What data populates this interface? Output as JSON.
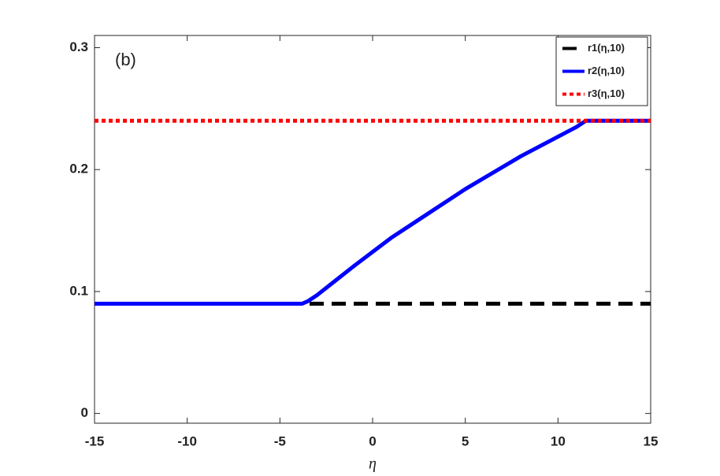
{
  "chart_data": {
    "type": "line",
    "annotation": "(b)",
    "x_label": "η",
    "xlim": [
      -15,
      15
    ],
    "xticks": [
      -15,
      -10,
      -5,
      0,
      5,
      10,
      15
    ],
    "ylim": [
      -0.008,
      0.31
    ],
    "yticks": [
      0,
      0.1,
      0.2,
      0.3
    ],
    "legend": "upper right",
    "series": [
      {
        "name": "r1(η,10)",
        "color": "#000000",
        "style": "dashed",
        "x": [
          -3.4,
          15
        ],
        "values": [
          0.09,
          0.09
        ]
      },
      {
        "name": "r2(η,10)",
        "color": "#0000ff",
        "style": "solid",
        "x": [
          -15,
          -3.8,
          -3.5,
          -3,
          -2,
          -1,
          0,
          1,
          2,
          3,
          4,
          5,
          6,
          7,
          8,
          9,
          10,
          11,
          11.5,
          15
        ],
        "values": [
          0.09,
          0.09,
          0.092,
          0.097,
          0.109,
          0.121,
          0.1325,
          0.144,
          0.154,
          0.164,
          0.174,
          0.184,
          0.193,
          0.202,
          0.211,
          0.219,
          0.227,
          0.235,
          0.24,
          0.24
        ]
      },
      {
        "name": "r3(η,10)",
        "color": "#ff0000",
        "style": "dotted",
        "x": [
          -15,
          15
        ],
        "values": [
          0.24,
          0.24
        ]
      }
    ]
  }
}
